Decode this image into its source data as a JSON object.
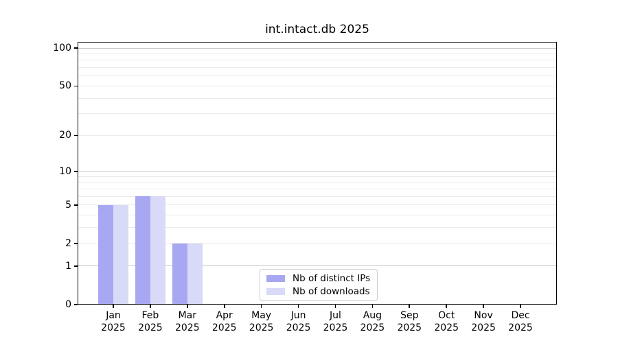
{
  "title": "int.intact.db 2025",
  "colors": {
    "distinct_ips_bar": "#a8a8f2",
    "downloads_bar": "#d9d9f8",
    "grid_major": "#c7c7c7",
    "grid_minor": "#eaeaea",
    "axis": "#000000",
    "legend_border": "#cccccc",
    "background": "#ffffff"
  },
  "chart_data": {
    "type": "bar",
    "title": "int.intact.db 2025",
    "categories": [
      "Jan",
      "Feb",
      "Mar",
      "Apr",
      "May",
      "Jun",
      "Jul",
      "Aug",
      "Sep",
      "Oct",
      "Nov",
      "Dec"
    ],
    "x_year": "2025",
    "series": [
      {
        "name": "Nb of distinct IPs",
        "color": "#a8a8f2",
        "values": [
          5,
          6,
          2,
          0,
          0,
          0,
          0,
          0,
          0,
          0,
          0,
          0
        ]
      },
      {
        "name": "Nb of downloads",
        "color": "#d9d9f8",
        "values": [
          5,
          6,
          2,
          0,
          0,
          0,
          0,
          0,
          0,
          0,
          0,
          0
        ]
      }
    ],
    "y_scale": "log1p",
    "y_ticks": [
      0,
      1,
      2,
      5,
      10,
      20,
      50,
      100
    ],
    "y_minor_gridlines": [
      2,
      3,
      4,
      5,
      6,
      7,
      8,
      9,
      20,
      30,
      40,
      50,
      60,
      70,
      80,
      90
    ],
    "y_major_gridlines": [
      1,
      10,
      100
    ],
    "ylim": [
      0,
      112
    ],
    "xlabel": "",
    "ylabel": "",
    "grid": true,
    "legend_position": "lower center"
  }
}
